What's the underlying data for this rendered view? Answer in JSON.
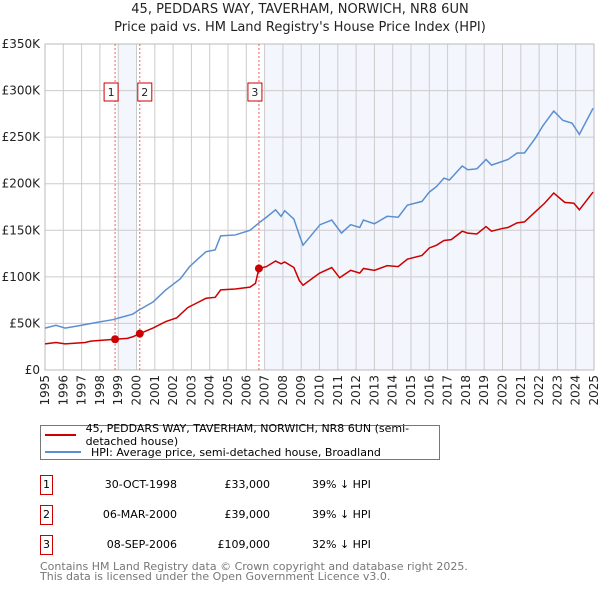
{
  "title": "45, PEDDARS WAY, TAVERHAM, NORWICH, NR8 6UN",
  "subtitle": "Price paid vs. HM Land Registry's House Price Index (HPI)",
  "colors": {
    "property": "#cc0000",
    "hpi": "#5b8fd1",
    "shade": "#f3f6fd",
    "grid": "#cccccc"
  },
  "chart_data": {
    "type": "line",
    "title": "Price paid vs. HM Land Registry's House Price Index (HPI)",
    "xlabel": "",
    "ylabel": "",
    "xlim": [
      1995,
      2025
    ],
    "ylim": [
      0,
      350000
    ],
    "yticks": [
      0,
      50000,
      100000,
      150000,
      200000,
      250000,
      300000,
      350000
    ],
    "ytick_labels": [
      "£0",
      "£50K",
      "£100K",
      "£150K",
      "£200K",
      "£250K",
      "£300K",
      "£350K"
    ],
    "xticks": [
      1995,
      1996,
      1997,
      1998,
      1999,
      2000,
      2001,
      2002,
      2003,
      2004,
      2005,
      2006,
      2007,
      2008,
      2009,
      2010,
      2011,
      2012,
      2013,
      2014,
      2015,
      2016,
      2017,
      2018,
      2019,
      2020,
      2021,
      2022,
      2023,
      2024,
      2025
    ],
    "grid": true,
    "shaded_ranges": [
      [
        1999,
        2000
      ],
      [
        2007,
        2025
      ]
    ],
    "series": [
      {
        "name": "45, PEDDARS WAY, TAVERHAM, NORWICH, NR8 6UN (semi-detached house)",
        "x": [
          1995.0,
          1995.6,
          1996.1,
          1997.2,
          1997.5,
          1998.83,
          1999.5,
          1999.8,
          2000.17,
          2000.9,
          2001.6,
          2002.2,
          2002.8,
          2003.4,
          2003.8,
          2004.3,
          2004.6,
          2005.4,
          2006.2,
          2006.5,
          2006.69,
          2007.1,
          2007.6,
          2007.9,
          2008.1,
          2008.6,
          2008.9,
          2009.1,
          2010.0,
          2010.67,
          2011.1,
          2011.7,
          2012.2,
          2012.4,
          2013.0,
          2013.7,
          2014.3,
          2014.8,
          2015.6,
          2016.0,
          2016.4,
          2016.8,
          2017.2,
          2017.8,
          2018.1,
          2018.6,
          2019.1,
          2019.4,
          2020.0,
          2020.3,
          2020.8,
          2021.2,
          2021.8,
          2022.3,
          2022.8,
          2023.4,
          2023.9,
          2024.2,
          2024.95
        ],
        "y": [
          28000,
          29500,
          28000,
          29500,
          31000,
          33000,
          34000,
          35700,
          39000,
          45000,
          52000,
          56000,
          67000,
          73000,
          77000,
          78000,
          86000,
          87000,
          89000,
          93000,
          109000,
          111000,
          117000,
          114000,
          116000,
          110000,
          96000,
          91000,
          104000,
          110000,
          99000,
          107000,
          104000,
          109000,
          107000,
          112000,
          111000,
          119000,
          123000,
          131000,
          134000,
          139000,
          140000,
          149000,
          147000,
          146000,
          154000,
          149000,
          152000,
          153000,
          158000,
          159000,
          170000,
          179000,
          190000,
          180000,
          179000,
          172000,
          191000
        ]
      },
      {
        "name": "HPI: Average price, semi-detached house, Broadland",
        "x": [
          1995.0,
          1995.6,
          1996.1,
          1997.0,
          1997.8,
          1998.7,
          1999.8,
          2000.1,
          2000.9,
          2001.6,
          2002.4,
          2002.9,
          2003.4,
          2003.8,
          2004.3,
          2004.6,
          2005.4,
          2006.2,
          2006.7,
          2007.1,
          2007.6,
          2007.9,
          2008.1,
          2008.6,
          2008.93,
          2009.1,
          2010.03,
          2010.67,
          2011.2,
          2011.7,
          2012.2,
          2012.4,
          2013.0,
          2013.7,
          2014.3,
          2014.8,
          2015.6,
          2016.0,
          2016.4,
          2016.8,
          2017.1,
          2017.8,
          2018.1,
          2018.6,
          2019.1,
          2019.4,
          2020.0,
          2020.3,
          2020.8,
          2021.2,
          2021.8,
          2022.2,
          2022.8,
          2023.3,
          2023.8,
          2024.2,
          2024.95
        ],
        "y": [
          45000,
          48000,
          45000,
          48000,
          51000,
          54000,
          60000,
          64000,
          73000,
          86000,
          98000,
          111000,
          120000,
          127000,
          129000,
          144000,
          145000,
          150000,
          158000,
          164000,
          172000,
          165000,
          171000,
          162000,
          143000,
          134000,
          156000,
          161000,
          147000,
          156000,
          153000,
          161000,
          157000,
          165000,
          164000,
          177000,
          181000,
          191000,
          197000,
          206000,
          204000,
          219000,
          215000,
          216000,
          226000,
          220000,
          224000,
          226000,
          233000,
          233000,
          249000,
          262000,
          278000,
          268000,
          265000,
          253000,
          281000
        ]
      }
    ],
    "sales": [
      {
        "label": "1",
        "x": 1998.83,
        "y": 33000
      },
      {
        "label": "2",
        "x": 2000.18,
        "y": 39000
      },
      {
        "label": "3",
        "x": 2006.69,
        "y": 109000
      }
    ]
  },
  "legend": {
    "property": "45, PEDDARS WAY, TAVERHAM, NORWICH, NR8 6UN (semi-detached house)",
    "hpi": "HPI: Average price, semi-detached house, Broadland"
  },
  "transactions": [
    {
      "num": "1",
      "date": "30-OCT-1998",
      "price": "£33,000",
      "hpi": "39% ↓ HPI"
    },
    {
      "num": "2",
      "date": "06-MAR-2000",
      "price": "£39,000",
      "hpi": "39% ↓ HPI"
    },
    {
      "num": "3",
      "date": "08-SEP-2006",
      "price": "£109,000",
      "hpi": "32% ↓ HPI"
    }
  ],
  "footer": {
    "line1": "Contains HM Land Registry data © Crown copyright and database right 2025.",
    "line2": "This data is licensed under the Open Government Licence v3.0."
  }
}
